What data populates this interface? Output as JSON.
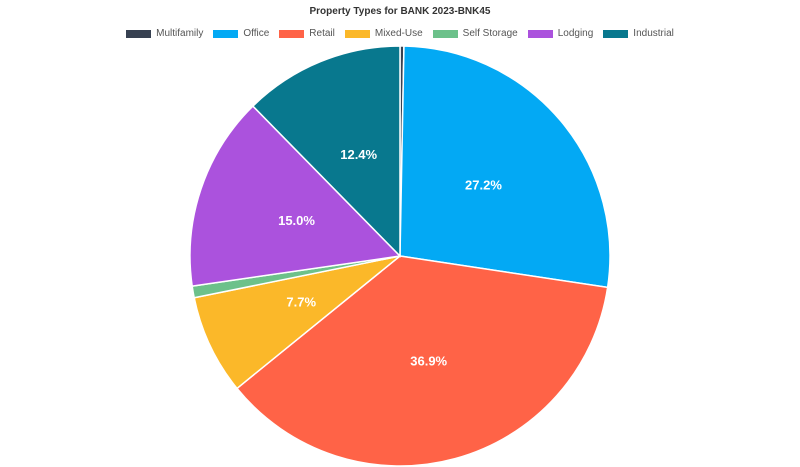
{
  "chart_data": {
    "type": "pie",
    "title": "Property Types for BANK 2023-BNK45",
    "legend_position": "top",
    "slices": [
      {
        "name": "Multifamily",
        "value": 0.3,
        "label": "",
        "color": "#374151"
      },
      {
        "name": "Office",
        "value": 27.2,
        "label": "27.2%",
        "color": "#03a9f4"
      },
      {
        "name": "Retail",
        "value": 36.9,
        "label": "36.9%",
        "color": "#ff6347"
      },
      {
        "name": "Mixed-Use",
        "value": 7.7,
        "label": "7.7%",
        "color": "#fbb829"
      },
      {
        "name": "Self Storage",
        "value": 0.9,
        "label": "",
        "color": "#6cc18a"
      },
      {
        "name": "Lodging",
        "value": 15.0,
        "label": "15.0%",
        "color": "#ab52dd"
      },
      {
        "name": "Industrial",
        "value": 12.4,
        "label": "12.4%",
        "color": "#08788e"
      }
    ]
  }
}
